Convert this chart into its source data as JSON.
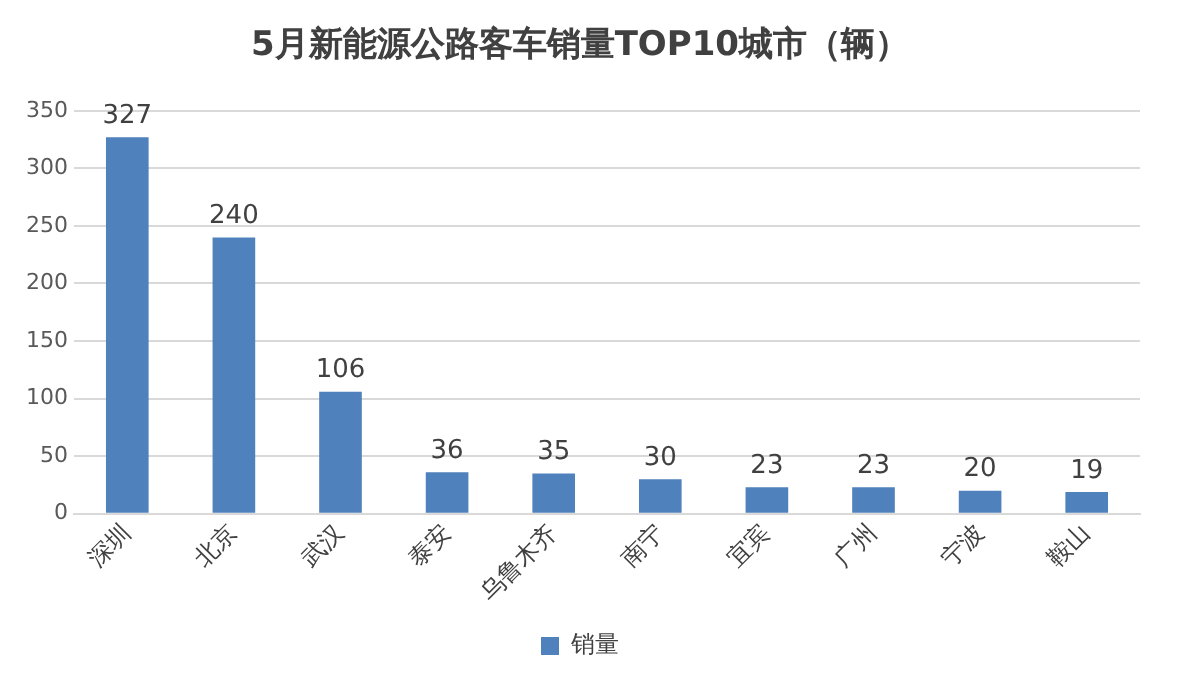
{
  "chart_data": {
    "type": "bar",
    "title": "5月新能源公路客车销量TOP10城市（辆）",
    "categories": [
      "深圳",
      "北京",
      "武汉",
      "泰安",
      "乌鲁木齐",
      "南宁",
      "宜宾",
      "广州",
      "宁波",
      "鞍山"
    ],
    "series": [
      {
        "name": "销量",
        "color": "#4f81bd",
        "values": [
          327,
          240,
          106,
          36,
          35,
          30,
          23,
          23,
          20,
          19
        ]
      }
    ],
    "ylim": [
      0,
      350
    ],
    "yticks": [
      0,
      50,
      100,
      150,
      200,
      250,
      300,
      350
    ],
    "grid": "y",
    "legend": "bottom",
    "data_labels": true
  }
}
